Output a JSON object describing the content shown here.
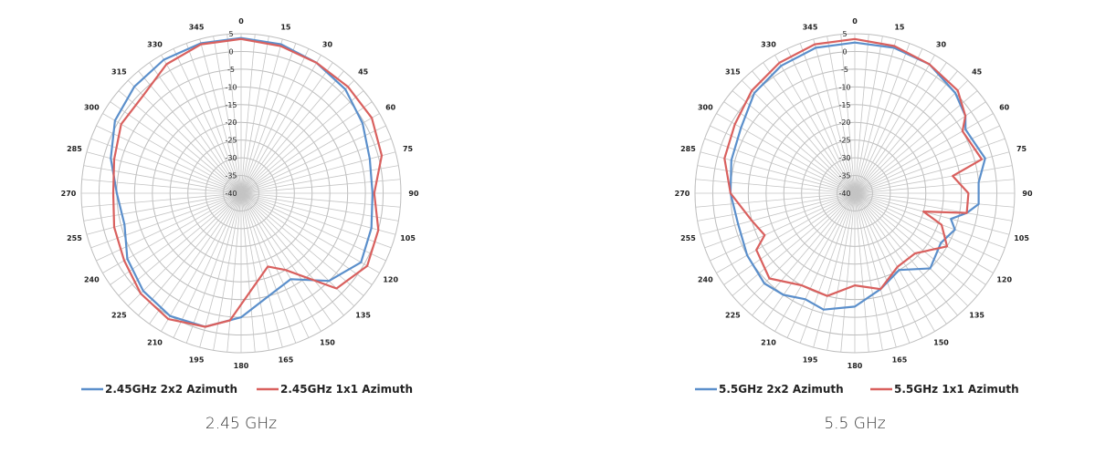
{
  "chart_data": [
    {
      "type": "polar-line",
      "caption": "2.45 GHz",
      "r_range": [
        -40,
        5
      ],
      "r_ticks": [
        5,
        0,
        -5,
        -10,
        -15,
        -20,
        -25,
        -30,
        -35,
        -40
      ],
      "angle_ticks": [
        0,
        15,
        30,
        45,
        60,
        75,
        90,
        105,
        120,
        135,
        150,
        165,
        180,
        195,
        210,
        225,
        240,
        255,
        270,
        285,
        300,
        315,
        330,
        345
      ],
      "grid": true,
      "legend_position": "bottom",
      "series": [
        {
          "name": "2.45GHz 2x2 Azimuth",
          "color": "#5b8fcb",
          "points": [
            [
              0,
              3.8
            ],
            [
              15,
              3.5
            ],
            [
              30,
              2.5
            ],
            [
              45,
              1.5
            ],
            [
              60,
              -0.5
            ],
            [
              75,
              -2.5
            ],
            [
              90,
              -3
            ],
            [
              105,
              -2
            ],
            [
              120,
              -1
            ],
            [
              135,
              -5
            ],
            [
              150,
              -12
            ],
            [
              165,
              -10
            ],
            [
              180,
              -5
            ],
            [
              195,
              -1
            ],
            [
              210,
              0
            ],
            [
              225,
              -1
            ],
            [
              240,
              -3
            ],
            [
              255,
              -6
            ],
            [
              270,
              -5
            ],
            [
              285,
              -2
            ],
            [
              300,
              1
            ],
            [
              315,
              2.5
            ],
            [
              330,
              3.5
            ],
            [
              345,
              3.8
            ],
            [
              360,
              3.8
            ]
          ]
        },
        {
          "name": "2.45GHz 1x1 Azimuth",
          "color": "#d9605e",
          "points": [
            [
              0,
              3.5
            ],
            [
              15,
              3
            ],
            [
              30,
              2.5
            ],
            [
              45,
              2.5
            ],
            [
              60,
              2.5
            ],
            [
              75,
              1
            ],
            [
              90,
              -2.5
            ],
            [
              105,
              0
            ],
            [
              120,
              1
            ],
            [
              135,
              -2
            ],
            [
              150,
              -15
            ],
            [
              160,
              -18
            ],
            [
              175,
              -12
            ],
            [
              185,
              -4
            ],
            [
              195,
              -1
            ],
            [
              210,
              1
            ],
            [
              225,
              0
            ],
            [
              240,
              -2
            ],
            [
              255,
              -3
            ],
            [
              270,
              -4
            ],
            [
              285,
              -3
            ],
            [
              300,
              -1
            ],
            [
              315,
              -1
            ],
            [
              330,
              2
            ],
            [
              345,
              3.5
            ],
            [
              360,
              3.5
            ]
          ]
        }
      ]
    },
    {
      "type": "polar-line",
      "caption": "5.5 GHz",
      "r_range": [
        -40,
        5
      ],
      "r_ticks": [
        5,
        0,
        -5,
        -10,
        -15,
        -20,
        -25,
        -30,
        -35,
        -40
      ],
      "angle_ticks": [
        0,
        15,
        30,
        45,
        60,
        75,
        90,
        105,
        120,
        135,
        150,
        165,
        180,
        195,
        210,
        225,
        240,
        255,
        270,
        285,
        300,
        315,
        330,
        345
      ],
      "grid": true,
      "legend_position": "bottom",
      "series": [
        {
          "name": "5.5GHz 2x2 Azimuth",
          "color": "#5b8fcb",
          "points": [
            [
              0,
              2.5
            ],
            [
              15,
              2.5
            ],
            [
              30,
              2
            ],
            [
              45,
              0
            ],
            [
              55,
              -2
            ],
            [
              60,
              -4
            ],
            [
              70,
              -3
            ],
            [
              75,
              -2
            ],
            [
              85,
              -5
            ],
            [
              95,
              -5
            ],
            [
              100,
              -8
            ],
            [
              105,
              -12
            ],
            [
              110,
              -10
            ],
            [
              120,
              -12
            ],
            [
              135,
              -10
            ],
            [
              150,
              -15
            ],
            [
              165,
              -12
            ],
            [
              180,
              -8
            ],
            [
              195,
              -6
            ],
            [
              205,
              -7
            ],
            [
              215,
              -5
            ],
            [
              225,
              -4
            ],
            [
              240,
              -5
            ],
            [
              255,
              -6
            ],
            [
              270,
              -5
            ],
            [
              285,
              -4
            ],
            [
              300,
              -3
            ],
            [
              315,
              0
            ],
            [
              330,
              1.5
            ],
            [
              345,
              2.5
            ],
            [
              360,
              2.5
            ]
          ]
        },
        {
          "name": "5.5GHz 1x1 Azimuth",
          "color": "#d9605e",
          "points": [
            [
              0,
              3.5
            ],
            [
              15,
              3
            ],
            [
              30,
              2
            ],
            [
              45,
              1
            ],
            [
              55,
              -2
            ],
            [
              60,
              -5
            ],
            [
              75,
              -3
            ],
            [
              80,
              -12
            ],
            [
              90,
              -8
            ],
            [
              100,
              -8
            ],
            [
              105,
              -20
            ],
            [
              110,
              -14
            ],
            [
              120,
              -10
            ],
            [
              135,
              -16
            ],
            [
              150,
              -16
            ],
            [
              165,
              -12
            ],
            [
              180,
              -14
            ],
            [
              195,
              -10
            ],
            [
              210,
              -10
            ],
            [
              225,
              -6
            ],
            [
              240,
              -8
            ],
            [
              245,
              -12
            ],
            [
              255,
              -10
            ],
            [
              270,
              -5
            ],
            [
              285,
              -2
            ],
            [
              300,
              -1
            ],
            [
              315,
              1
            ],
            [
              330,
              2.5
            ],
            [
              345,
              3.5
            ],
            [
              360,
              3.5
            ]
          ]
        }
      ]
    }
  ]
}
